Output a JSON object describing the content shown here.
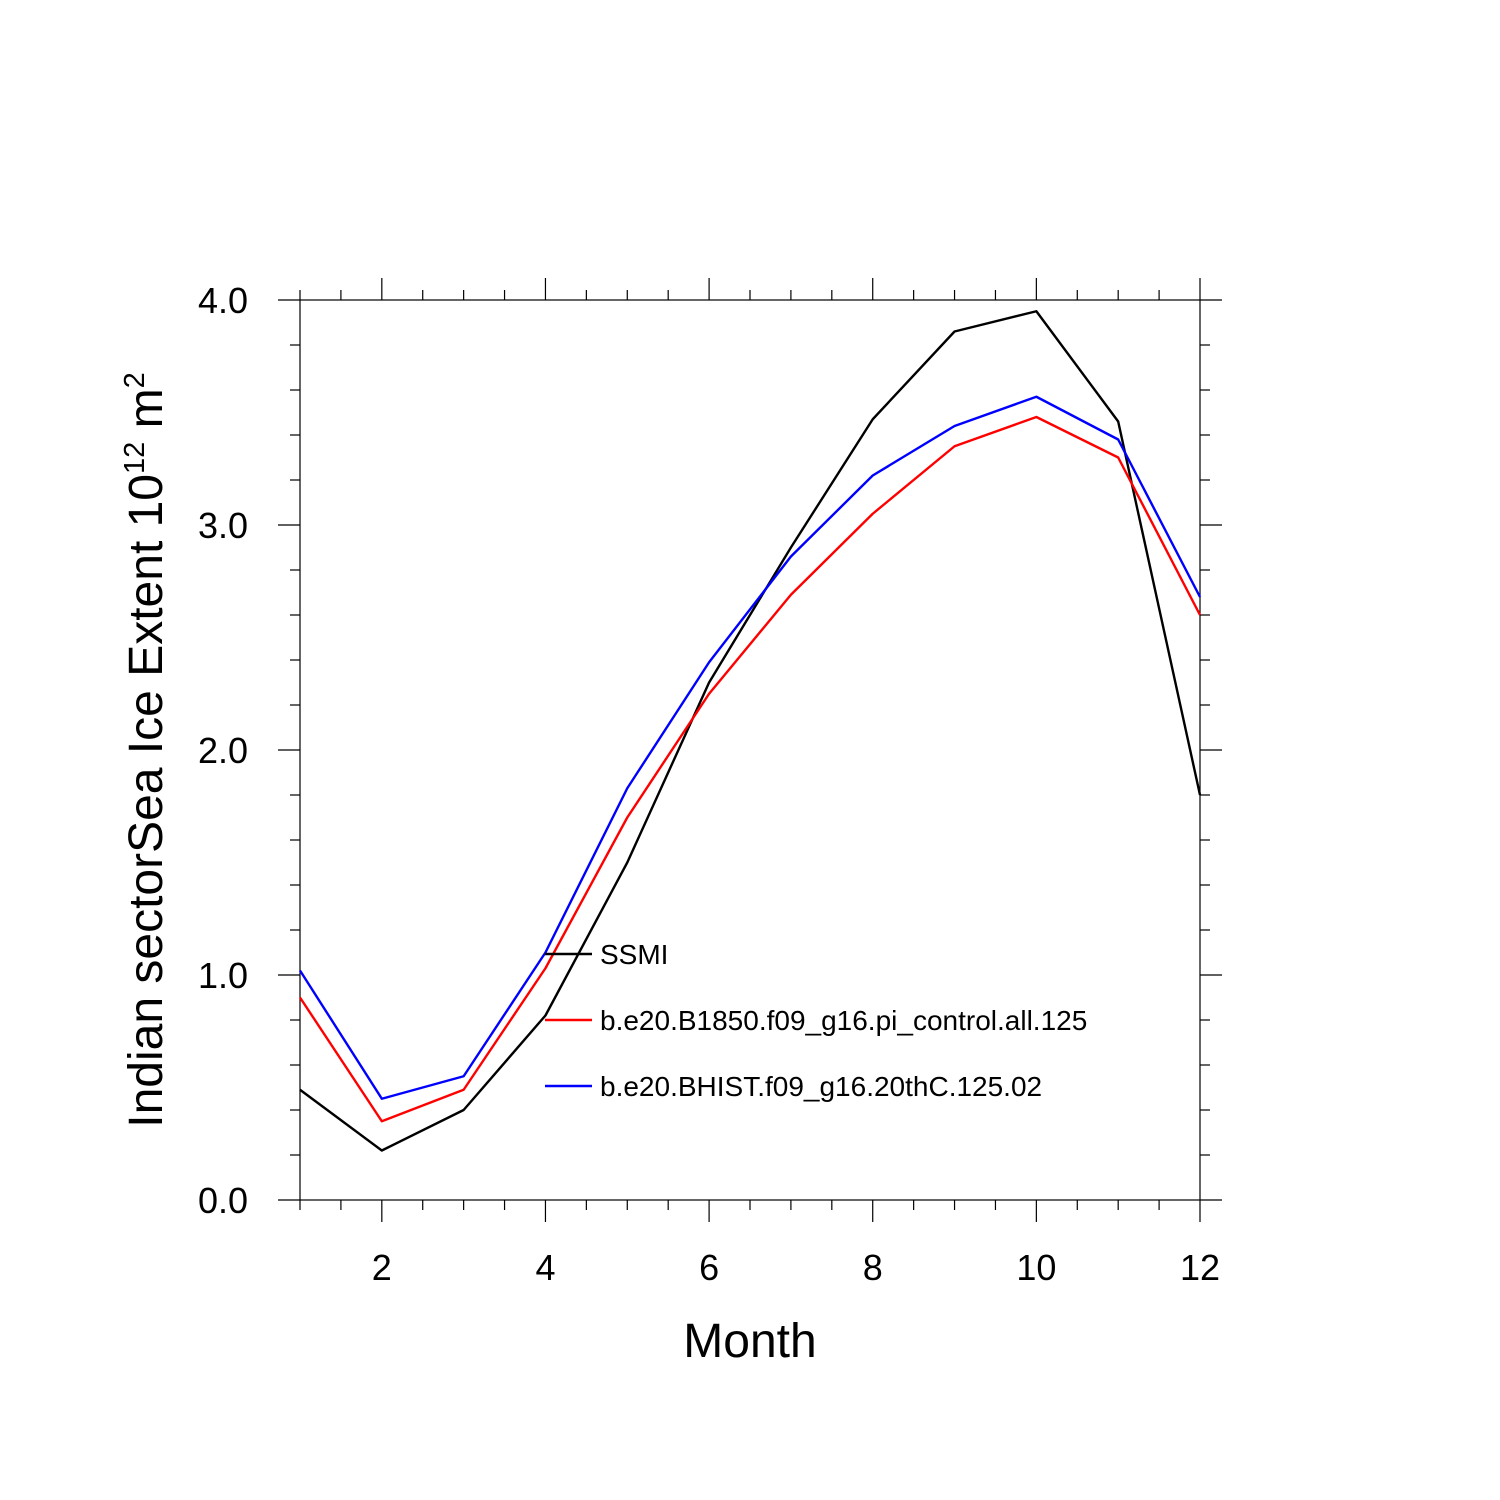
{
  "chart_data": {
    "type": "line",
    "xlabel": "Month",
    "ylabel_main": "Indian sectorSea Ice Extent 10",
    "ylabel_sup1": "12",
    "ylabel_mid": " m",
    "ylabel_sup2": "2",
    "xlim": [
      1,
      12
    ],
    "ylim": [
      0,
      4
    ],
    "xticks": [
      2,
      4,
      6,
      8,
      10,
      12
    ],
    "xtick_labels": [
      "2",
      "4",
      "6",
      "8",
      "10",
      "12"
    ],
    "yticks": [
      0,
      1,
      2,
      3,
      4
    ],
    "ytick_labels": [
      "0.0",
      "1.0",
      "2.0",
      "3.0",
      "4.0"
    ],
    "grid": false,
    "legend_position": "center",
    "x": [
      1,
      2,
      3,
      4,
      5,
      6,
      7,
      8,
      9,
      10,
      11,
      12
    ],
    "series": [
      {
        "name": "SSMI",
        "color": "#000000",
        "values": [
          0.49,
          0.22,
          0.4,
          0.82,
          1.5,
          2.3,
          2.9,
          3.47,
          3.86,
          3.95,
          3.46,
          1.8
        ]
      },
      {
        "name": "b.e20.B1850.f09_g16.pi_control.all.125",
        "color": "#ff0000",
        "values": [
          0.9,
          0.35,
          0.49,
          1.03,
          1.7,
          2.25,
          2.69,
          3.05,
          3.35,
          3.48,
          3.3,
          2.6
        ]
      },
      {
        "name": "b.e20.BHIST.f09_g16.20thC.125.02",
        "color": "#0000ff",
        "values": [
          1.02,
          0.45,
          0.55,
          1.1,
          1.83,
          2.39,
          2.86,
          3.22,
          3.44,
          3.57,
          3.38,
          2.68
        ]
      }
    ]
  }
}
